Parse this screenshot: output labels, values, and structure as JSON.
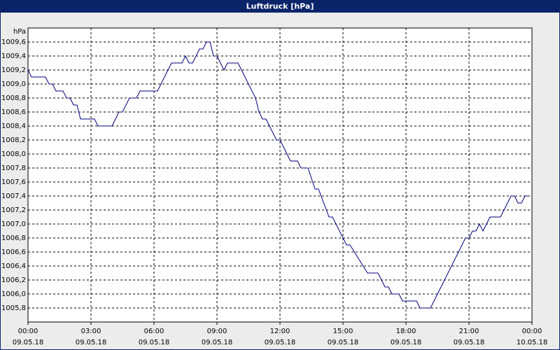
{
  "chart_data": {
    "type": "line",
    "title": "Luftdruck [hPa]",
    "y_unit": "hPa",
    "xlim": [
      0,
      1440
    ],
    "xticks": [
      {
        "value": 0,
        "label": [
          "00:00",
          "09.05.18"
        ]
      },
      {
        "value": 180,
        "label": [
          "03:00",
          "09.05.18"
        ]
      },
      {
        "value": 360,
        "label": [
          "06:00",
          "09.05.18"
        ]
      },
      {
        "value": 540,
        "label": [
          "09:00",
          "09.05.18"
        ]
      },
      {
        "value": 720,
        "label": [
          "12:00",
          "09.05.18"
        ]
      },
      {
        "value": 900,
        "label": [
          "15:00",
          "09.05.18"
        ]
      },
      {
        "value": 1080,
        "label": [
          "18:00",
          "09.05.18"
        ]
      },
      {
        "value": 1260,
        "label": [
          "21:00",
          "09.05.18"
        ]
      },
      {
        "value": 1440,
        "label": [
          "00:00",
          "10.05.18"
        ]
      }
    ],
    "ylim": [
      1005.6,
      1009.8
    ],
    "yticks": [
      {
        "value": 1005.8,
        "label": "1005,8"
      },
      {
        "value": 1006.0,
        "label": "1006,0"
      },
      {
        "value": 1006.2,
        "label": "1006,2"
      },
      {
        "value": 1006.4,
        "label": "1006,4"
      },
      {
        "value": 1006.6,
        "label": "1006,6"
      },
      {
        "value": 1006.8,
        "label": "1006,8"
      },
      {
        "value": 1007.0,
        "label": "1007,0"
      },
      {
        "value": 1007.2,
        "label": "1007,2"
      },
      {
        "value": 1007.4,
        "label": "1007,4"
      },
      {
        "value": 1007.6,
        "label": "1007,6"
      },
      {
        "value": 1007.8,
        "label": "1007,8"
      },
      {
        "value": 1008.0,
        "label": "1008,0"
      },
      {
        "value": 1008.2,
        "label": "1008,2"
      },
      {
        "value": 1008.4,
        "label": "1008,4"
      },
      {
        "value": 1008.6,
        "label": "1008,6"
      },
      {
        "value": 1008.8,
        "label": "1008,8"
      },
      {
        "value": 1009.0,
        "label": "1009,0"
      },
      {
        "value": 1009.2,
        "label": "1009,2"
      },
      {
        "value": 1009.4,
        "label": "1009,4"
      },
      {
        "value": 1009.6,
        "label": "1009,6"
      }
    ],
    "grid": true,
    "color": "#000080",
    "x": [
      0,
      10,
      50,
      60,
      70,
      80,
      100,
      110,
      120,
      130,
      140,
      150,
      190,
      200,
      240,
      260,
      270,
      290,
      310,
      320,
      370,
      410,
      440,
      450,
      460,
      470,
      490,
      500,
      510,
      520,
      530,
      540,
      560,
      570,
      600,
      650,
      660,
      670,
      680,
      710,
      720,
      750,
      770,
      780,
      800,
      820,
      830,
      860,
      870,
      910,
      920,
      970,
      1000,
      1020,
      1030,
      1040,
      1060,
      1070,
      1110,
      1120,
      1150,
      1170,
      1230,
      1250,
      1260,
      1270,
      1280,
      1290,
      1300,
      1320,
      1350,
      1380,
      1390,
      1400,
      1410,
      1420,
      1430
    ],
    "values": [
      1009.2,
      1009.1,
      1009.1,
      1009.0,
      1009.0,
      1008.9,
      1008.9,
      1008.8,
      1008.8,
      1008.7,
      1008.7,
      1008.5,
      1008.5,
      1008.4,
      1008.4,
      1008.6,
      1008.6,
      1008.8,
      1008.8,
      1008.9,
      1008.9,
      1009.3,
      1009.3,
      1009.4,
      1009.3,
      1009.3,
      1009.5,
      1009.5,
      1009.6,
      1009.6,
      1009.4,
      1009.4,
      1009.2,
      1009.3,
      1009.3,
      1008.8,
      1008.6,
      1008.5,
      1008.5,
      1008.2,
      1008.2,
      1007.9,
      1007.9,
      1007.8,
      1007.8,
      1007.5,
      1007.5,
      1007.1,
      1007.1,
      1006.7,
      1006.7,
      1006.3,
      1006.3,
      1006.1,
      1006.1,
      1006.0,
      1006.0,
      1005.9,
      1005.9,
      1005.8,
      1005.8,
      1006.0,
      1006.6,
      1006.8,
      1006.8,
      1006.9,
      1006.9,
      1007.0,
      1006.9,
      1007.1,
      1007.1,
      1007.4,
      1007.4,
      1007.3,
      1007.3,
      1007.4,
      1007.4
    ]
  }
}
